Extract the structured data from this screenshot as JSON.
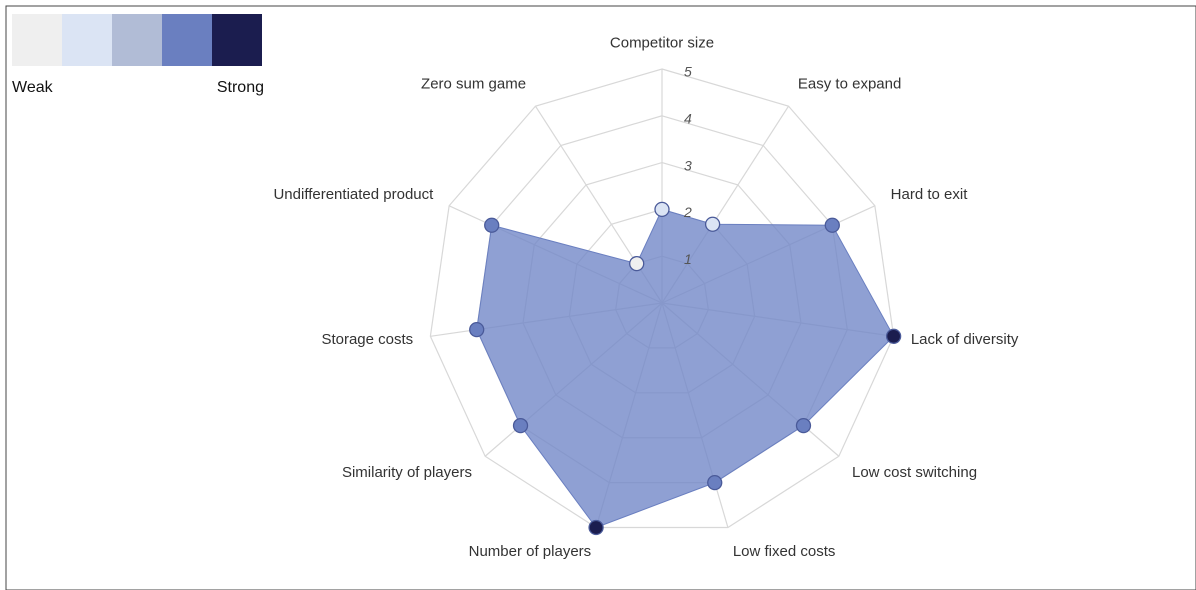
{
  "chart_data": {
    "type": "radar",
    "categories": [
      "Competitor size",
      "Easy to expand",
      "Hard to exit",
      "Lack of diversity",
      "Low cost switching",
      "Low fixed costs",
      "Number of players",
      "Similarity of players",
      "Storage costs",
      "Undifferentiated product",
      "Zero sum game"
    ],
    "values": [
      2,
      2,
      4,
      5,
      4,
      4,
      5,
      4,
      4,
      4,
      1
    ],
    "color": "#7085c6",
    "rlim": [
      0,
      5
    ],
    "rticks": [
      1,
      2,
      3,
      4,
      5
    ],
    "grid": true,
    "legend": {
      "colors": [
        "#efefef",
        "#dbe4f4",
        "#b1bcd6",
        "#6a7fc0",
        "#1b1d4f"
      ],
      "labels": [
        "Weak",
        "Strong"
      ],
      "position": "upper left"
    }
  }
}
